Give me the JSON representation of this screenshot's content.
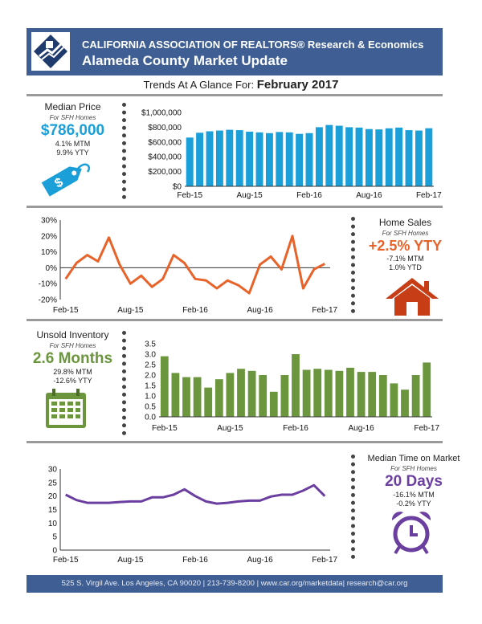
{
  "header": {
    "line1": "CALIFORNIA ASSOCIATION OF REALTORS® Research & Economics",
    "line2": "Alameda County Market Update"
  },
  "trends": {
    "prefix": "Trends At A Glance For:",
    "month": "February 2017"
  },
  "median_price": {
    "title": "Median Price",
    "sub": "For SFH Homes",
    "value": "$786,000",
    "mtm": "4.1% MTM",
    "yty": "9.9% YTY",
    "color": "#1a9fd9",
    "icon": "price-tag-icon"
  },
  "home_sales": {
    "title": "Home Sales",
    "sub": "For SFH Homes",
    "value": "+2.5% YTY",
    "mtm": "-7.1% MTM",
    "ytd": "1.0% YTD",
    "color": "#e8632a",
    "icon": "house-icon"
  },
  "inventory": {
    "title": "Unsold Inventory",
    "sub": "For SFH Homes",
    "value": "2.6 Months",
    "mtm": "29.8% MTM",
    "yty": "-12.6% YTY",
    "color": "#6b963e",
    "icon": "calendar-icon"
  },
  "time_on_market": {
    "title": "Median Time on Market",
    "sub": "For SFH Homes",
    "value": "20 Days",
    "mtm": "-16.1% MTM",
    "yty": "-0.2% YTY",
    "color": "#6b3fa0",
    "icon": "alarm-clock-icon"
  },
  "footer": "525 S. Virgil Ave. Los Angeles, CA 90020 | 213-739-8200 | www.car.org/marketdata| research@car.org",
  "chart_data": [
    {
      "type": "bar",
      "x_tick_labels": [
        "Feb-15",
        "Aug-15",
        "Feb-16",
        "Aug-16",
        "Feb-17"
      ],
      "y_tick_labels": [
        "$0",
        "$200,000",
        "$400,000",
        "$600,000",
        "$800,000",
        "$1,000,000"
      ],
      "ylim": [
        0,
        1000000
      ],
      "color": "#1a9fd9",
      "values": [
        660000,
        725000,
        745000,
        755000,
        765000,
        760000,
        740000,
        730000,
        720000,
        735000,
        730000,
        710000,
        720000,
        800000,
        830000,
        820000,
        800000,
        795000,
        775000,
        770000,
        785000,
        795000,
        760000,
        755000,
        786000
      ]
    },
    {
      "type": "line",
      "x_tick_labels": [
        "Feb-15",
        "Aug-15",
        "Feb-16",
        "Aug-16",
        "Feb-17"
      ],
      "y_tick_labels": [
        "-20%",
        "-10%",
        "0%",
        "10%",
        "20%",
        "30%"
      ],
      "ylim": [
        -20,
        30
      ],
      "color": "#e8632a",
      "values": [
        -7,
        3,
        8,
        4,
        19,
        2,
        -10,
        -5,
        -12,
        -7,
        8,
        3,
        -7,
        -8,
        -13,
        -8,
        -11,
        -16,
        2,
        7,
        -1,
        20,
        -13,
        -1,
        2.5
      ]
    },
    {
      "type": "bar",
      "x_tick_labels": [
        "Feb-15",
        "Aug-15",
        "Feb-16",
        "Aug-16",
        "Feb-17"
      ],
      "y_tick_labels": [
        "0.0",
        "0.5",
        "1.0",
        "1.5",
        "2.0",
        "2.5",
        "3.0",
        "3.5"
      ],
      "ylim": [
        0,
        3.5
      ],
      "color": "#6b963e",
      "values": [
        2.9,
        2.1,
        1.9,
        1.9,
        1.4,
        1.8,
        2.1,
        2.3,
        2.2,
        2.0,
        1.2,
        2.0,
        3.0,
        2.25,
        2.3,
        2.25,
        2.2,
        2.35,
        2.15,
        2.15,
        2.0,
        1.6,
        1.3,
        2.0,
        2.6
      ]
    },
    {
      "type": "line",
      "x_tick_labels": [
        "Feb-15",
        "Aug-15",
        "Feb-16",
        "Aug-16",
        "Feb-17"
      ],
      "y_tick_labels": [
        "0",
        "5",
        "10",
        "15",
        "20",
        "25",
        "30"
      ],
      "ylim": [
        0,
        30
      ],
      "color": "#6b3fa0",
      "values": [
        20.5,
        18.5,
        17.5,
        17.5,
        17.5,
        17.8,
        18,
        18,
        19.5,
        19.5,
        20.5,
        22.5,
        20,
        18,
        17.2,
        17.5,
        18,
        18.3,
        18.3,
        19.8,
        20.5,
        20.5,
        22,
        24,
        20
      ]
    }
  ]
}
